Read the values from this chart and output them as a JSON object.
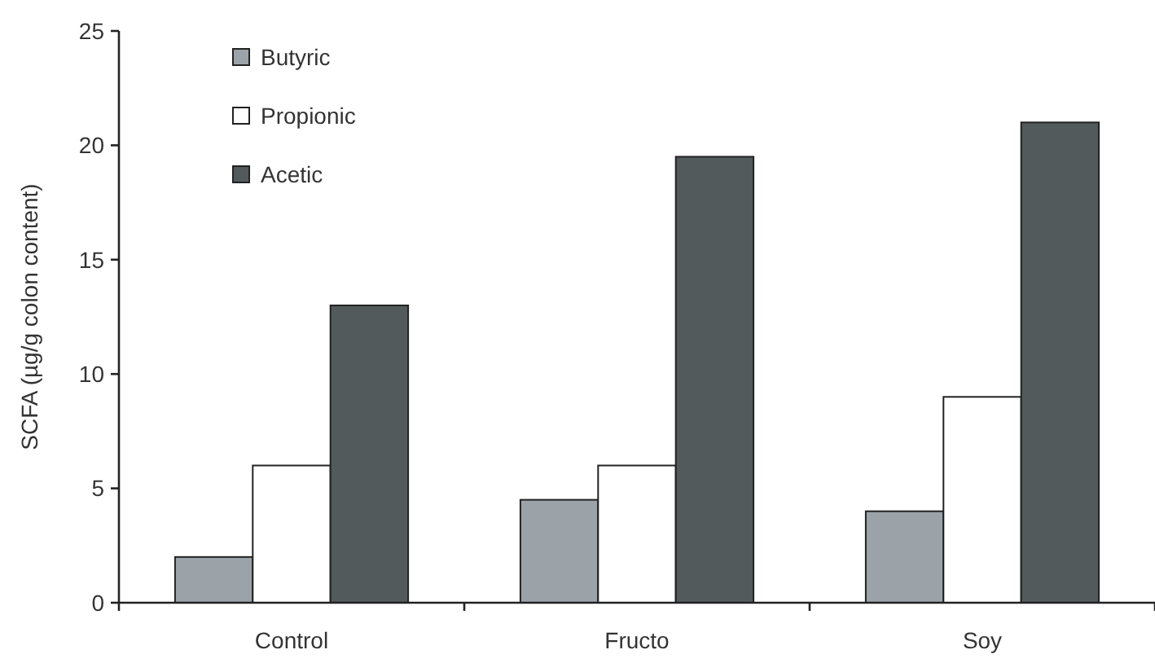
{
  "chart_data": {
    "type": "bar",
    "ylabel": "SCFA (µg/g colon content)",
    "categories": [
      "Control",
      "Fructo",
      "Soy"
    ],
    "series": [
      {
        "name": "Butyric",
        "color": "#9ca3a8",
        "values": [
          2,
          4.5,
          4
        ]
      },
      {
        "name": "Propionic",
        "color": "#ffffff",
        "values": [
          6,
          6,
          9
        ]
      },
      {
        "name": "Acetic",
        "color": "#535a5c",
        "values": [
          13,
          19.5,
          21
        ]
      }
    ],
    "ylim": [
      0,
      25
    ],
    "yticks": [
      0,
      5,
      10,
      15,
      20,
      25
    ],
    "grid": false,
    "legend": "top left"
  }
}
